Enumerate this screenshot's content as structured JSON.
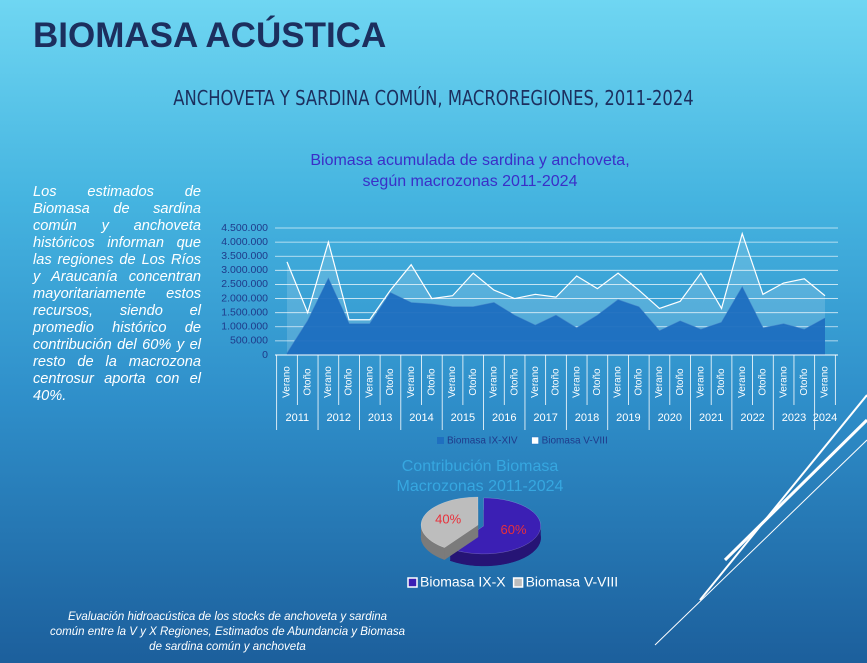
{
  "title": "BIOMASA ACÚSTICA",
  "subtitle": "ANCHOVETA Y SARDINA COMÚN, MACROREGIONES,  2011-2024",
  "body": "Los estimados de Biomasa de sardina común y anchoveta históricos informan que las regiones de Los Ríos y Araucanía concentran mayoritariamente estos recursos, siendo el promedio histórico de contribución del 60% y el resto de la macrozona centrosur aporta con el 40%.",
  "footer": "Evaluación hidroacústica de los stocks de anchoveta y sardina común entre la V y X Regiones, Estimados de Abundancia y Biomasa de sardina común y anchoveta",
  "chart_data": [
    {
      "type": "area",
      "stacked": true,
      "title": "Biomasa acumulada de sardina y anchoveta, según macrozonas 2011-2024",
      "categories": [
        "Verano",
        "Otoño",
        "Verano",
        "Otoño",
        "Verano",
        "Otoño",
        "Verano",
        "Otoño",
        "Verano",
        "Otoño",
        "Verano",
        "Otoño",
        "Verano",
        "Otoño",
        "Verano",
        "Otoño",
        "Verano",
        "Otoño",
        "Verano",
        "Otoño",
        "Verano",
        "Otoño",
        "Verano",
        "Otoño",
        "Verano",
        "Otoño",
        "Verano"
      ],
      "years": [
        "2011",
        "2012",
        "2013",
        "2014",
        "2015",
        "2016",
        "2017",
        "2018",
        "2019",
        "2020",
        "2021",
        "2022",
        "2023",
        "2024"
      ],
      "series": [
        {
          "name": "Biomasa IX-XIV",
          "color": "#1f6fc0",
          "values": [
            50000,
            1200000,
            2700000,
            1100000,
            1100000,
            2200000,
            1850000,
            1800000,
            1700000,
            1700000,
            1850000,
            1400000,
            1050000,
            1400000,
            950000,
            1400000,
            1950000,
            1700000,
            850000,
            1200000,
            900000,
            1150000,
            2400000,
            950000,
            1100000,
            900000,
            1300000
          ]
        },
        {
          "name": "Biomasa V-VIII",
          "color": "#ffffff",
          "values": [
            3250000,
            300000,
            1300000,
            150000,
            150000,
            100000,
            1350000,
            200000,
            400000,
            1200000,
            450000,
            600000,
            1100000,
            650000,
            1850000,
            950000,
            950000,
            600000,
            800000,
            700000,
            2000000,
            500000,
            1900000,
            1200000,
            1450000,
            1800000,
            800000
          ]
        }
      ],
      "ylim": [
        0,
        4500000
      ],
      "yticks": [
        0,
        {
          "value": 500000,
          "label": "500.000"
        },
        {
          "value": 1000000,
          "label": "1.000.000"
        },
        {
          "value": 1500000,
          "label": "1.500.000"
        },
        {
          "value": 2000000,
          "label": "2.000.000"
        },
        {
          "value": 2500000,
          "label": "2.500.000"
        },
        {
          "value": 3000000,
          "label": "3.000.000"
        },
        {
          "value": 3500000,
          "label": "3.500.000"
        },
        {
          "value": 4000000,
          "label": "4.000.000"
        },
        {
          "value": 4500000,
          "label": "4.500.000"
        }
      ],
      "grid": true,
      "legend": "bottom"
    },
    {
      "type": "pie",
      "title": "Contribución Biomasa Macrozonas 2011-2024",
      "categories": [
        "Biomasa IX-X",
        "Biomasa V-VIII"
      ],
      "values": [
        60,
        40
      ],
      "value_labels": [
        "60%",
        "40%"
      ],
      "colors": [
        "#3b1fb4",
        "#bdbdbd"
      ],
      "legend": "bottom"
    }
  ]
}
